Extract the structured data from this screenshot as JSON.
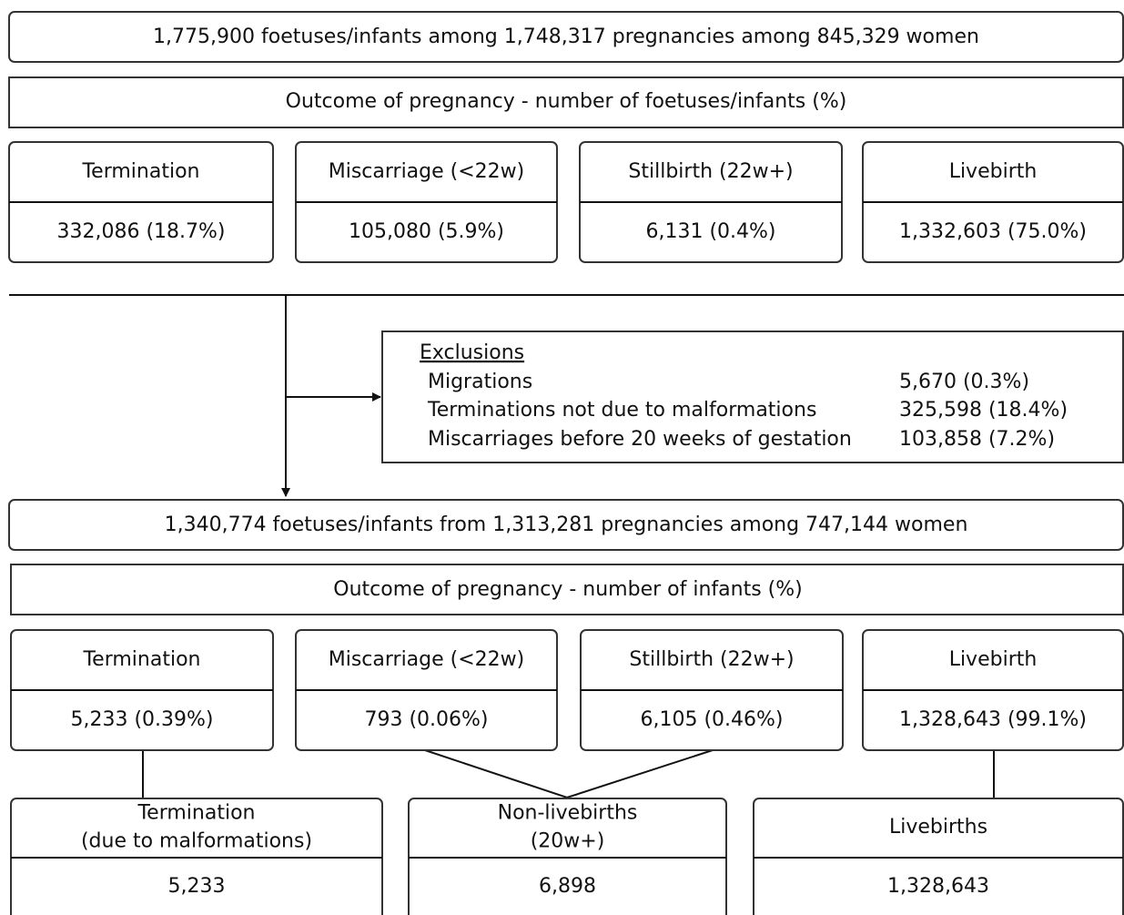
{
  "header": "1,775,900 foetuses/infants among 1,748,317 pregnancies among 845,329 women",
  "outcome_all": {
    "title": "Outcome of pregnancy - number of foetuses/infants (%)",
    "boxes": [
      {
        "label": "Termination",
        "value": "332,086 (18.7%)"
      },
      {
        "label": "Miscarriage (<22w)",
        "value": "105,080 (5.9%)"
      },
      {
        "label": "Stillbirth (22w+)",
        "value": "6,131 (0.4%)"
      },
      {
        "label": "Livebirth",
        "value": "1,332,603 (75.0%)"
      }
    ]
  },
  "exclusions": {
    "title": "Exclusions",
    "rows": [
      [
        "Migrations",
        "5,670 (0.3%)"
      ],
      [
        "Terminations not due to malformations",
        "325,598 (18.4%)"
      ],
      [
        "Miscarriages before 20 weeks of gestation",
        "103,858 (7.2%)"
      ]
    ]
  },
  "cohort": "1,340,774 foetuses/infants from 1,313,281 pregnancies among 747,144 women",
  "outcome_cohort": {
    "title": "Outcome of pregnancy - number of infants (%)",
    "boxes": [
      {
        "label": "Termination",
        "value": "5,233 (0.39%)"
      },
      {
        "label": "Miscarriage (<22w)",
        "value": "793 (0.06%)"
      },
      {
        "label": "Stillbirth (22w+)",
        "value": "6,105 (0.46%)"
      },
      {
        "label": "Livebirth",
        "value": "1,328,643 (99.1%)"
      }
    ]
  },
  "final": [
    {
      "label": [
        "Termination",
        "(due to malformations)"
      ],
      "value": "5,233"
    },
    {
      "label": [
        "Non-livebirths",
        "(20w+)"
      ],
      "value": "6,898"
    },
    {
      "label": [
        "Livebirths"
      ],
      "value": "1,328,643"
    }
  ]
}
